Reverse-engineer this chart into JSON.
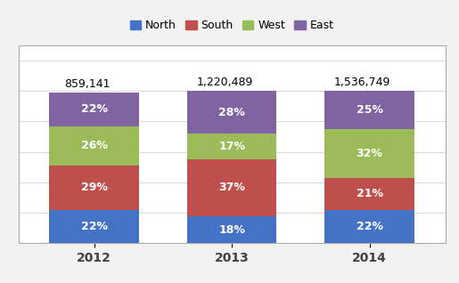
{
  "years": [
    "2012",
    "2013",
    "2014"
  ],
  "totals": [
    "859,141",
    "1,220,489",
    "1,536,749"
  ],
  "series": {
    "North": {
      "values": [
        22,
        18,
        22
      ],
      "color": "#4472C4"
    },
    "South": {
      "values": [
        29,
        37,
        21
      ],
      "color": "#C0504D"
    },
    "West": {
      "values": [
        26,
        17,
        32
      ],
      "color": "#9BBB59"
    },
    "East": {
      "values": [
        22,
        28,
        25
      ],
      "color": "#8064A2"
    }
  },
  "legend_order": [
    "North",
    "South",
    "West",
    "East"
  ],
  "bg_color": "#FFFFFF",
  "grid_color": "#D9D9D9",
  "bar_width": 0.65,
  "ylim": [
    0,
    130
  ],
  "figsize": [
    5.15,
    3.18
  ],
  "dpi": 100,
  "label_fontsize": 9,
  "tick_fontsize": 10,
  "legend_fontsize": 9,
  "total_fontsize": 9
}
